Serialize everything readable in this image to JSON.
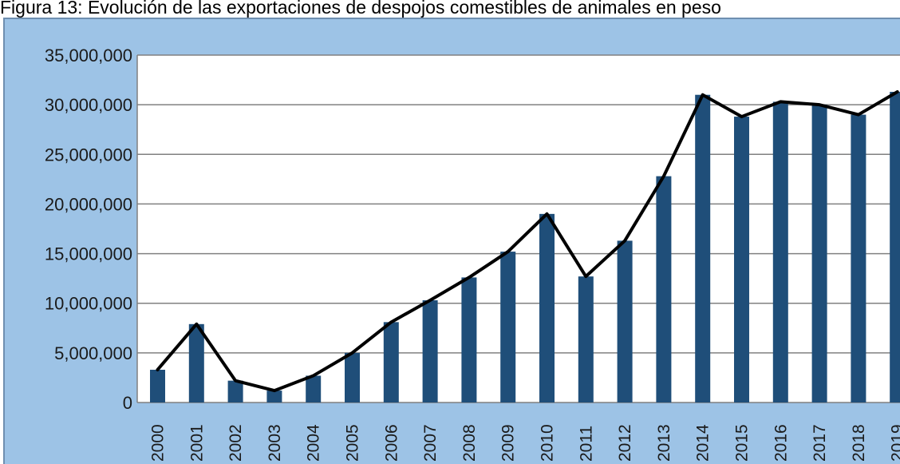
{
  "title": "Figura 13: Evolución de las exportaciones de despojos comestibles de animales en peso",
  "chart_data": {
    "type": "bar",
    "title": "Figura 13: Evolución de las exportaciones de despojos comestibles de animales en peso",
    "xlabel": "",
    "ylabel": "",
    "categories": [
      "2000",
      "2001",
      "2002",
      "2003",
      "2004",
      "2005",
      "2006",
      "2007",
      "2008",
      "2009",
      "2010",
      "2011",
      "2012",
      "2013",
      "2014",
      "2015",
      "2016",
      "2017",
      "2018",
      "2019"
    ],
    "series": [
      {
        "type": "bar",
        "values": [
          3300000,
          7900000,
          2200000,
          1200000,
          2700000,
          5000000,
          8100000,
          10300000,
          12600000,
          15200000,
          19000000,
          12700000,
          16300000,
          22800000,
          31000000,
          28800000,
          30300000,
          30000000,
          29000000,
          31300000
        ],
        "color": "#1f4e79"
      },
      {
        "type": "line",
        "values": [
          3300000,
          7900000,
          2200000,
          1200000,
          2700000,
          5000000,
          8100000,
          10300000,
          12600000,
          15200000,
          19000000,
          12700000,
          16300000,
          22800000,
          31000000,
          28800000,
          30300000,
          30000000,
          29000000,
          31300000
        ],
        "color": "#000000"
      }
    ],
    "ylim": [
      0,
      35000000
    ],
    "yticks": [
      0,
      5000000,
      10000000,
      15000000,
      20000000,
      25000000,
      30000000,
      35000000
    ],
    "ytick_labels": [
      "0",
      "5,000,000",
      "10,000,000",
      "15,000,000",
      "20,000,000",
      "25,000,000",
      "30,000,000",
      "35,000,000"
    ],
    "grid": true,
    "legend": "none",
    "colors": {
      "frame": "#9dc3e6",
      "plot_bg": "#ffffff",
      "bar": "#1f4e79",
      "line": "#000000",
      "grid": "#808080"
    }
  }
}
